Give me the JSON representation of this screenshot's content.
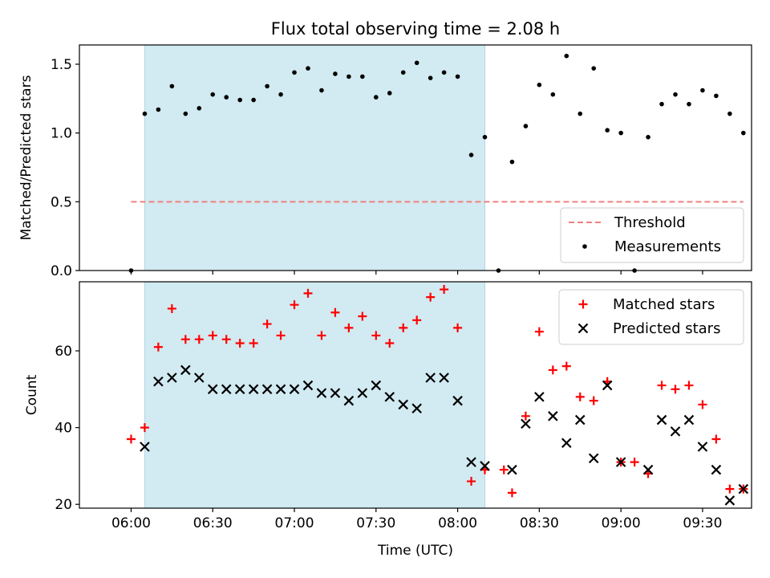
{
  "chart_data": {
    "title": "Flux total observing time = 2.08 h",
    "xlabel": "Time (UTC)",
    "x_unit": "minutes after 06:00 UTC",
    "xlim": [
      -19,
      228
    ],
    "x_ticks": [
      {
        "value": 0,
        "label": "06:00"
      },
      {
        "value": 30,
        "label": "06:30"
      },
      {
        "value": 60,
        "label": "07:00"
      },
      {
        "value": 90,
        "label": "07:30"
      },
      {
        "value": 120,
        "label": "08:00"
      },
      {
        "value": 150,
        "label": "08:30"
      },
      {
        "value": 180,
        "label": "09:00"
      },
      {
        "value": 210,
        "label": "09:30"
      }
    ],
    "shaded_interval": {
      "from": 5,
      "to": 130,
      "color": "#add8e6"
    },
    "panels": [
      {
        "type": "scatter",
        "ylabel": "Matched/Predicted stars",
        "ylim": [
          0,
          1.64
        ],
        "y_ticks": [
          {
            "value": 0,
            "label": "0.0"
          },
          {
            "value": 0.5,
            "label": "0.5"
          },
          {
            "value": 1.0,
            "label": "1.0"
          },
          {
            "value": 1.5,
            "label": "1.5"
          }
        ],
        "legend": {
          "position": "lower right",
          "entries": [
            {
              "label": "Threshold",
              "series": "threshold"
            },
            {
              "label": "Measurements",
              "series": "measurements"
            }
          ]
        },
        "series": [
          {
            "name": "Threshold",
            "key": "threshold",
            "style": "dashed-line",
            "color": "#f08080",
            "x": [
              0,
              225
            ],
            "y": [
              0.5,
              0.5
            ]
          },
          {
            "name": "Measurements",
            "key": "measurements",
            "style": "dot",
            "color": "#000000",
            "x": [
              0,
              5,
              10,
              15,
              20,
              25,
              30,
              35,
              40,
              45,
              50,
              55,
              60,
              65,
              70,
              75,
              80,
              85,
              90,
              95,
              100,
              105,
              110,
              115,
              120,
              125,
              130,
              135,
              140,
              145,
              150,
              155,
              160,
              165,
              170,
              175,
              180,
              185,
              190,
              195,
              200,
              205,
              210,
              215,
              220,
              225
            ],
            "y": [
              0.0,
              1.14,
              1.17,
              1.34,
              1.14,
              1.18,
              1.28,
              1.26,
              1.24,
              1.24,
              1.34,
              1.28,
              1.44,
              1.47,
              1.31,
              1.43,
              1.41,
              1.41,
              1.26,
              1.29,
              1.44,
              1.51,
              1.4,
              1.44,
              1.41,
              0.84,
              0.97,
              0.0,
              0.79,
              1.05,
              1.35,
              1.28,
              1.56,
              1.14,
              1.47,
              1.02,
              1.0,
              0.0,
              0.97,
              1.21,
              1.28,
              1.21,
              1.31,
              1.27,
              1.14,
              1.0
            ]
          }
        ]
      },
      {
        "type": "scatter",
        "ylabel": "Count",
        "ylim": [
          19,
          78
        ],
        "y_ticks": [
          {
            "value": 20,
            "label": "20"
          },
          {
            "value": 40,
            "label": "40"
          },
          {
            "value": 60,
            "label": "60"
          }
        ],
        "legend": {
          "position": "upper right",
          "entries": [
            {
              "label": "Matched stars",
              "series": "matched"
            },
            {
              "label": "Predicted stars",
              "series": "predicted"
            }
          ]
        },
        "series": [
          {
            "name": "Matched stars",
            "key": "matched",
            "style": "plus",
            "color": "#ff0000",
            "x": [
              0,
              5,
              10,
              15,
              20,
              25,
              30,
              35,
              40,
              45,
              50,
              55,
              60,
              65,
              70,
              75,
              80,
              85,
              90,
              95,
              100,
              105,
              110,
              115,
              120,
              125,
              130,
              137,
              140,
              145,
              150,
              155,
              160,
              165,
              170,
              175,
              180,
              185,
              190,
              195,
              200,
              205,
              210,
              215,
              220,
              225
            ],
            "y": [
              37,
              40,
              61,
              71,
              63,
              63,
              64,
              63,
              62,
              62,
              67,
              64,
              72,
              75,
              64,
              70,
              66,
              69,
              64,
              62,
              66,
              68,
              74,
              76,
              66,
              26,
              29,
              29,
              23,
              43,
              65,
              55,
              56,
              48,
              47,
              52,
              31,
              31,
              28,
              51,
              50,
              51,
              46,
              37,
              24,
              24
            ]
          },
          {
            "name": "Predicted stars",
            "key": "predicted",
            "style": "x",
            "color": "#000000",
            "x": [
              5,
              10,
              15,
              20,
              25,
              30,
              35,
              40,
              45,
              50,
              55,
              60,
              65,
              70,
              75,
              80,
              85,
              90,
              95,
              100,
              105,
              110,
              115,
              120,
              125,
              130,
              140,
              145,
              150,
              155,
              160,
              165,
              170,
              175,
              180,
              190,
              195,
              200,
              205,
              210,
              215,
              220,
              225
            ],
            "y": [
              35,
              52,
              53,
              55,
              53,
              50,
              50,
              50,
              50,
              50,
              50,
              50,
              51,
              49,
              49,
              47,
              49,
              51,
              48,
              46,
              45,
              53,
              53,
              47,
              31,
              30,
              29,
              41,
              48,
              43,
              36,
              42,
              32,
              51,
              31,
              29,
              42,
              39,
              42,
              35,
              29,
              21,
              24
            ]
          }
        ]
      }
    ]
  }
}
